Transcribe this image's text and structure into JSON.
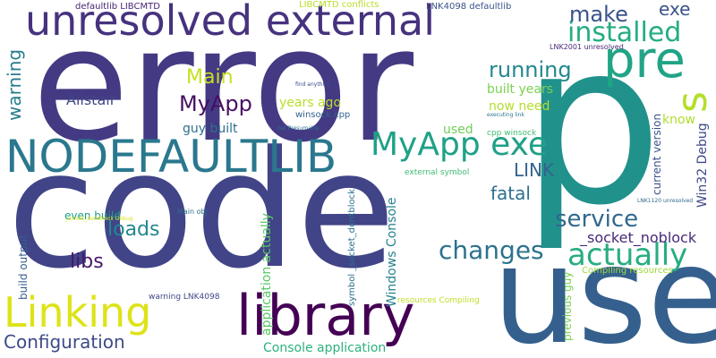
{
  "words": [
    {
      "text": "error",
      "color": "#443a83",
      "orientation": "horizontal"
    },
    {
      "text": "code",
      "color": "#414487",
      "orientation": "horizontal"
    },
    {
      "text": "p",
      "color": "#21918c",
      "orientation": "horizontal"
    },
    {
      "text": "use",
      "color": "#35608d",
      "orientation": "horizontal"
    },
    {
      "text": "library",
      "color": "#440154",
      "orientation": "horizontal"
    },
    {
      "text": "Linking",
      "color": "#dde318",
      "orientation": "horizontal"
    },
    {
      "text": "unresolved external",
      "color": "#46327e",
      "orientation": "horizontal"
    },
    {
      "text": "NODEFAULTLIB",
      "color": "#2a788e",
      "orientation": "horizontal"
    },
    {
      "text": "pre",
      "color": "#20a486",
      "orientation": "horizontal"
    },
    {
      "text": "s",
      "color": "#b5de2b",
      "orientation": "vertical"
    },
    {
      "text": "MyApp exe",
      "color": "#1fa187",
      "orientation": "horizontal"
    },
    {
      "text": "changes",
      "color": "#2c728e",
      "orientation": "horizontal"
    },
    {
      "text": "actually",
      "color": "#27ad81",
      "orientation": "horizontal"
    },
    {
      "text": "installed",
      "color": "#25ac82",
      "orientation": "horizontal"
    },
    {
      "text": "make",
      "color": "#3a538b",
      "orientation": "horizontal"
    },
    {
      "text": "running",
      "color": "#23888e",
      "orientation": "horizontal"
    },
    {
      "text": "service",
      "color": "#31688e",
      "orientation": "horizontal"
    },
    {
      "text": "Configuration",
      "color": "#3e4a89",
      "orientation": "horizontal"
    },
    {
      "text": "loads",
      "color": "#24878e",
      "orientation": "horizontal"
    },
    {
      "text": "libs",
      "color": "#481769",
      "orientation": "horizontal"
    },
    {
      "text": "MyApp",
      "color": "#471063",
      "orientation": "horizontal"
    },
    {
      "text": "Main",
      "color": "#c8e020",
      "orientation": "horizontal"
    },
    {
      "text": "warning",
      "color": "#287c8e",
      "orientation": "vertical"
    },
    {
      "text": "fatal",
      "color": "#2d708e",
      "orientation": "horizontal"
    },
    {
      "text": "LINK",
      "color": "#33638d",
      "orientation": "horizontal"
    },
    {
      "text": "exe",
      "color": "#3b528b",
      "orientation": "horizontal"
    },
    {
      "text": "_socket_noblock",
      "color": "#472a7a",
      "orientation": "horizontal"
    },
    {
      "text": "Alistair",
      "color": "#3f4788",
      "orientation": "horizontal"
    },
    {
      "text": "years ago",
      "color": "#b8de29",
      "orientation": "horizontal"
    },
    {
      "text": "guy built",
      "color": "#2e6f8e",
      "orientation": "horizontal"
    },
    {
      "text": "built years",
      "color": "#7ad151",
      "orientation": "horizontal"
    },
    {
      "text": "now need",
      "color": "#b4de2c",
      "orientation": "horizontal"
    },
    {
      "text": "used",
      "color": "#6ece58",
      "orientation": "horizontal"
    },
    {
      "text": "know",
      "color": "#b0dd2f",
      "orientation": "horizontal"
    },
    {
      "text": "even build",
      "color": "#1f9e89",
      "orientation": "horizontal"
    },
    {
      "text": "Console application",
      "color": "#2db27d",
      "orientation": "horizontal"
    },
    {
      "text": "Windows Console",
      "color": "#26828e",
      "orientation": "vertical"
    },
    {
      "text": "application actually",
      "color": "#58c765",
      "orientation": "vertical"
    },
    {
      "text": "build output",
      "color": "#365d8d",
      "orientation": "vertical"
    },
    {
      "text": "current version",
      "color": "#3b528b",
      "orientation": "vertical"
    },
    {
      "text": "Win32 Debug",
      "color": "#3f4889",
      "orientation": "vertical"
    },
    {
      "text": "previous guy",
      "color": "#77d153",
      "orientation": "vertical"
    },
    {
      "text": "defaultlib LIBCMTD",
      "color": "#482475",
      "orientation": "horizontal"
    },
    {
      "text": "LIBCMTD conflicts",
      "color": "#b8de29",
      "orientation": "horizontal"
    },
    {
      "text": "LNK4098 defaultlib",
      "color": "#3b528b",
      "orientation": "horizontal"
    },
    {
      "text": "LNK2001 unresolved",
      "color": "#482878",
      "orientation": "horizontal"
    },
    {
      "text": "winsock cpp",
      "color": "#33638d",
      "orientation": "horizontal"
    },
    {
      "text": "cpp winsock",
      "color": "#3fbc73",
      "orientation": "horizontal"
    },
    {
      "text": "external symbol",
      "color": "#3dbc74",
      "orientation": "horizontal"
    },
    {
      "text": "symbol _socket_dontblock",
      "color": "#2d708e",
      "orientation": "vertical"
    },
    {
      "text": "Compiling resources",
      "color": "#9bd93c",
      "orientation": "horizontal"
    },
    {
      "text": "resources Compiling",
      "color": "#bddf26",
      "orientation": "horizontal"
    },
    {
      "text": "warning LNK4098",
      "color": "#404688",
      "orientation": "horizontal"
    },
    {
      "text": "Main obj",
      "color": "#2e6e8e",
      "orientation": "horizontal"
    },
    {
      "text": "find anything",
      "color": "#3e4c8a",
      "orientation": "horizontal"
    },
    {
      "text": "executing link",
      "color": "#2a768e",
      "orientation": "horizontal"
    },
    {
      "text": "LNK1120 unresolved",
      "color": "#31688e",
      "orientation": "horizontal"
    },
    {
      "text": "net Presumably",
      "color": "#2c718e",
      "orientation": "horizontal"
    },
    {
      "text": "_socket_dontblock Debug",
      "color": "#d8e219",
      "orientation": "horizontal"
    }
  ]
}
